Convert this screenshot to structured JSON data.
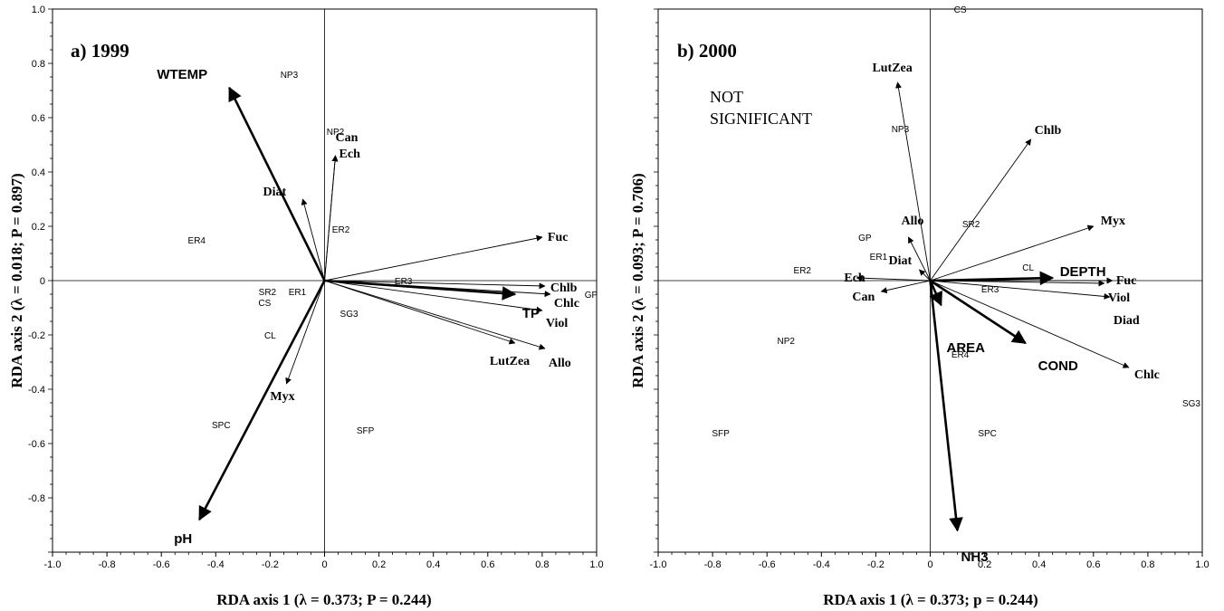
{
  "chart_data": [
    {
      "type": "scatter",
      "title": "a) 1999",
      "xlabel": "RDA axis 1 (λ = 0.373; P = 0.244)",
      "ylabel": "RDA axis  2 (λ = 0.018; P = 0.897)",
      "xlim": [
        -1.0,
        1.0
      ],
      "ylim": [
        -1.0,
        1.0
      ],
      "xticks": [
        "-1.0",
        "-0.8",
        "-0.6",
        "-0.4",
        "-0.2",
        "0",
        "0.2",
        "0.4",
        "0.6",
        "0.8",
        "1.0"
      ],
      "yticks": [
        "1.0",
        "0.8",
        "0.6",
        "0.4",
        "0.2",
        "0",
        "-0.2",
        "-0.4",
        "-0.6",
        "-0.8"
      ],
      "origin_lines": true,
      "environment_vectors": [
        {
          "label": "WTEMP",
          "x": -0.35,
          "y": 0.71
        },
        {
          "label": "pH",
          "x": -0.46,
          "y": -0.88
        },
        {
          "label": "TP",
          "x": 0.7,
          "y": -0.05
        }
      ],
      "pigment_vectors": [
        {
          "label": "Can",
          "x": 0.04,
          "y": 0.46
        },
        {
          "label": "Ech",
          "x": 0.04,
          "y": 0.46
        },
        {
          "label": "Diat",
          "x": -0.08,
          "y": 0.3
        },
        {
          "label": "Fuc",
          "x": 0.8,
          "y": 0.16
        },
        {
          "label": "Chlb",
          "x": 0.81,
          "y": -0.02
        },
        {
          "label": "Chlc",
          "x": 0.83,
          "y": -0.05
        },
        {
          "label": "Viol",
          "x": 0.8,
          "y": -0.11
        },
        {
          "label": "Allo",
          "x": 0.81,
          "y": -0.25
        },
        {
          "label": "LutZea",
          "x": 0.7,
          "y": -0.23
        },
        {
          "label": "Myx",
          "x": -0.14,
          "y": -0.38
        }
      ],
      "sites": [
        {
          "label": "NP3",
          "x": -0.13,
          "y": 0.76
        },
        {
          "label": "NP2",
          "x": 0.04,
          "y": 0.55
        },
        {
          "label": "ER2",
          "x": 0.06,
          "y": 0.19
        },
        {
          "label": "ER4",
          "x": -0.47,
          "y": 0.15
        },
        {
          "label": "ER3",
          "x": 0.29,
          "y": 0.0
        },
        {
          "label": "GP",
          "x": 0.98,
          "y": -0.05
        },
        {
          "label": "SR2",
          "x": -0.21,
          "y": -0.04
        },
        {
          "label": "ER1",
          "x": -0.1,
          "y": -0.04
        },
        {
          "label": "CS",
          "x": -0.22,
          "y": -0.08
        },
        {
          "label": "SG3",
          "x": 0.09,
          "y": -0.12
        },
        {
          "label": "CL",
          "x": -0.2,
          "y": -0.2
        },
        {
          "label": "SPC",
          "x": -0.38,
          "y": -0.53
        },
        {
          "label": "SFP",
          "x": 0.15,
          "y": -0.55
        }
      ]
    },
    {
      "type": "scatter",
      "title": "b) 2000",
      "annotation": [
        "NOT",
        "SIGNIFICANT"
      ],
      "xlabel": "RDA axis 1 (λ = 0.373; p = 0.244)",
      "ylabel": "RDA axis  2 (λ = 0.093; P = 0.706)",
      "xlim": [
        -1.0,
        1.0
      ],
      "ylim": [
        -1.0,
        1.0
      ],
      "xticks": [
        "-1.0",
        "-0.8",
        "-0.6",
        "-0.4",
        "-0.2",
        "0",
        "0.2",
        "0.4",
        "0.6",
        "0.8",
        "1.0"
      ],
      "yticks": [],
      "origin_lines": true,
      "environment_vectors": [
        {
          "label": "DEPTH",
          "x": 0.45,
          "y": 0.01
        },
        {
          "label": "AREA",
          "x": 0.04,
          "y": -0.09
        },
        {
          "label": "COND",
          "x": 0.35,
          "y": -0.23
        },
        {
          "label": "NH3",
          "x": 0.1,
          "y": -0.92
        }
      ],
      "pigment_vectors": [
        {
          "label": "LutZea",
          "x": -0.12,
          "y": 0.73
        },
        {
          "label": "Chlb",
          "x": 0.37,
          "y": 0.52
        },
        {
          "label": "Myx",
          "x": 0.6,
          "y": 0.2
        },
        {
          "label": "Allo",
          "x": -0.08,
          "y": 0.16
        },
        {
          "label": "Diat",
          "x": -0.04,
          "y": 0.04
        },
        {
          "label": "Ech",
          "x": -0.27,
          "y": 0.01
        },
        {
          "label": "Can",
          "x": -0.18,
          "y": -0.04
        },
        {
          "label": "Fuc",
          "x": 0.67,
          "y": 0.0
        },
        {
          "label": "Viol",
          "x": 0.64,
          "y": -0.01
        },
        {
          "label": "Diad",
          "x": 0.66,
          "y": -0.06
        },
        {
          "label": "Chlc",
          "x": 0.73,
          "y": -0.32
        }
      ],
      "sites": [
        {
          "label": "CS",
          "x": 0.11,
          "y": 1.0
        },
        {
          "label": "NP3",
          "x": -0.11,
          "y": 0.56
        },
        {
          "label": "SR2",
          "x": 0.15,
          "y": 0.21
        },
        {
          "label": "GP",
          "x": -0.24,
          "y": 0.16
        },
        {
          "label": "ER1",
          "x": -0.19,
          "y": 0.09
        },
        {
          "label": "ER2",
          "x": -0.47,
          "y": 0.04
        },
        {
          "label": "CL",
          "x": 0.36,
          "y": 0.05
        },
        {
          "label": "ER3",
          "x": 0.22,
          "y": -0.03
        },
        {
          "label": "NP2",
          "x": -0.53,
          "y": -0.22
        },
        {
          "label": "ER4",
          "x": 0.11,
          "y": -0.27
        },
        {
          "label": "SFP",
          "x": -0.77,
          "y": -0.56
        },
        {
          "label": "SPC",
          "x": 0.21,
          "y": -0.56
        },
        {
          "label": "SG3",
          "x": 0.96,
          "y": -0.45
        }
      ]
    }
  ]
}
